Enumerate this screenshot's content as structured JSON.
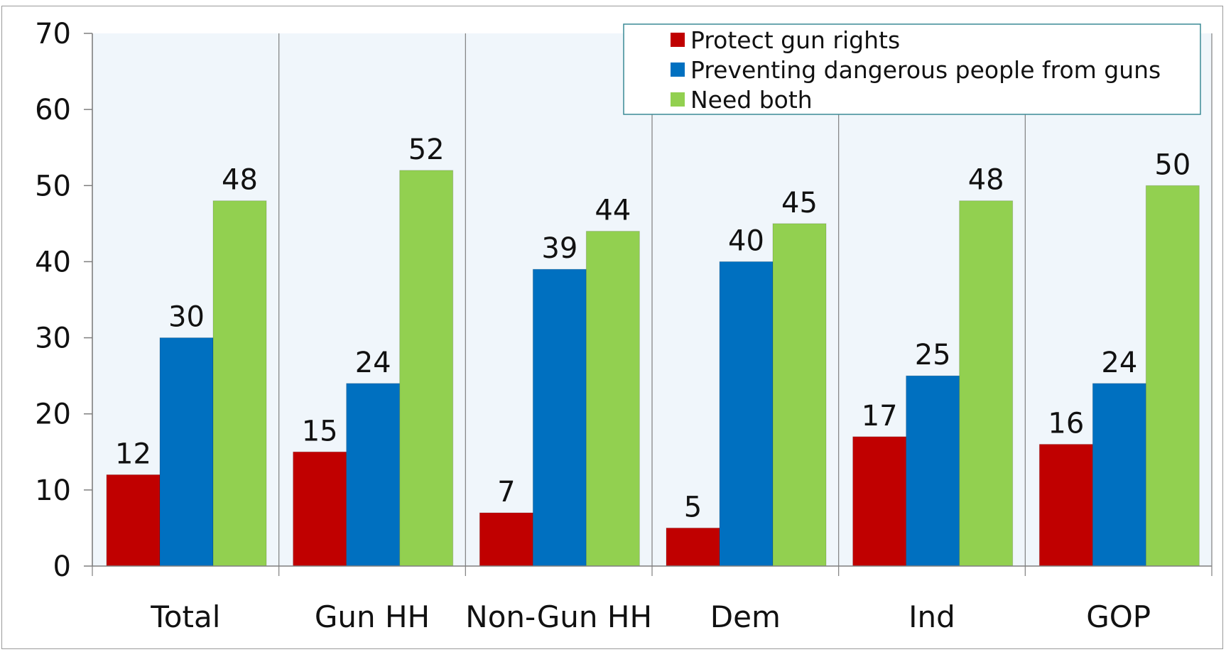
{
  "chart_data": {
    "type": "bar",
    "title": "",
    "xlabel": "",
    "ylabel": "",
    "ylim": [
      0,
      70
    ],
    "yticks": [
      "0",
      "10",
      "20",
      "30",
      "40",
      "50",
      "60",
      "70"
    ],
    "categories": [
      "Total",
      "Gun HH",
      "Non-Gun HH",
      "Dem",
      "Ind",
      "GOP"
    ],
    "series": [
      {
        "name": "Protect gun rights",
        "color": "#c00000",
        "values": [
          12,
          15,
          7,
          5,
          17,
          16
        ]
      },
      {
        "name": "Preventing dangerous people from guns",
        "color": "#0070c0",
        "values": [
          30,
          24,
          39,
          40,
          25,
          24
        ]
      },
      {
        "name": "Need both",
        "color": "#92d050",
        "values": [
          48,
          52,
          44,
          45,
          48,
          50
        ]
      }
    ],
    "data_labels": [
      [
        "12",
        "15",
        "7",
        "5",
        "17",
        "16"
      ],
      [
        "30",
        "24",
        "39",
        "40",
        "25",
        "24"
      ],
      [
        "48",
        "52",
        "44",
        "45",
        "48",
        "50"
      ]
    ],
    "legend": {
      "position": "top-right"
    },
    "grid": false,
    "plot_background": "#f0f6fb",
    "divider_color": "#7f7f7f"
  }
}
